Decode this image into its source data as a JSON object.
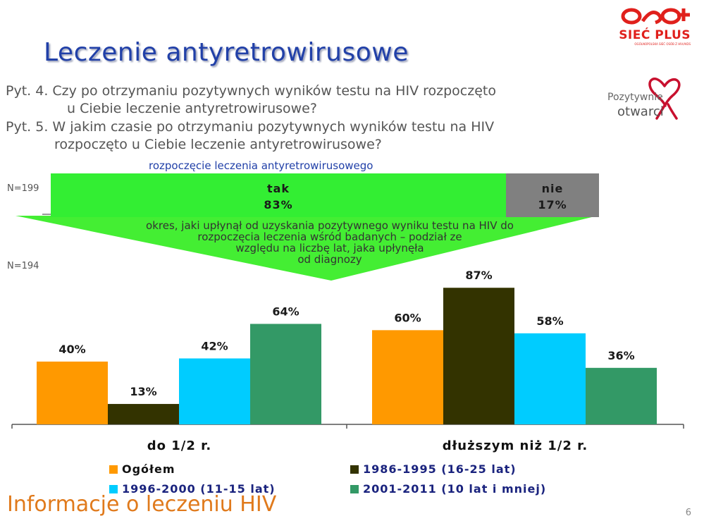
{
  "title": "Leczenie antyretrowirusowe",
  "questions": [
    {
      "line1": "Pyt. 4. Czy po otrzymaniu pozytywnych wyników testu na HIV rozpoczęto",
      "line2": "u Ciebie leczenie antyretrowirusowe?"
    },
    {
      "line1": "Pyt. 5. W jakim czasie po otrzymaniu pozytywnych wyników testu na HIV",
      "line2": "rozpoczęto u Ciebie leczenie antyretrowirusowe?"
    }
  ],
  "logos": {
    "siec_plus": {
      "brand": "SIEĆ PLUS",
      "tagline": "OGÓLNOPOLSKA SIEĆ OSÓB Z HIV/AIDS",
      "color": "#e0201c"
    },
    "pozytywnie": {
      "line1": "Pozytywnie",
      "line2": "otwarci",
      "color": "#c8102e"
    }
  },
  "top_section": {
    "subheading": "rozpoczęcie leczenia antyretrowirusowego",
    "n_label": "N=199",
    "segments": [
      {
        "label": "tak",
        "value": "83%",
        "color": "#33ee33"
      },
      {
        "label": "nie",
        "value": "17%",
        "color": "#808080"
      }
    ]
  },
  "funnel": {
    "text_lines": [
      "okres, jaki upłynął od uzyskania pozytywnego wyniku testu na HIV do",
      "rozpoczęcia leczenia wśród badanych – podział ze",
      "względu na liczbę lat, jaka upłynęła",
      "od diagnozy"
    ],
    "color": "#44ee33"
  },
  "chart_data": {
    "type": "bar",
    "n_label": "N=194",
    "categories": [
      "do 1/2 r.",
      "dłuższym niż 1/2 r."
    ],
    "series": [
      {
        "name": "Ogółem",
        "values": [
          40,
          60
        ],
        "color": "#ff9900"
      },
      {
        "name": "1986-1995 (16-25 lat)",
        "values": [
          13,
          87
        ],
        "color": "#333300"
      },
      {
        "name": "1996-2000 (11-15 lat)",
        "values": [
          42,
          58
        ],
        "color": "#00ccff"
      },
      {
        "name": "2001-2011 (10 lat i mniej)",
        "values": [
          64,
          36
        ],
        "color": "#339966"
      }
    ],
    "value_suffix": "%",
    "ylim": [
      0,
      100
    ],
    "legend_placement": "bottom",
    "grid": false
  },
  "footer": {
    "text": "Informacje o leczeniu HIV",
    "page_number": "6"
  }
}
